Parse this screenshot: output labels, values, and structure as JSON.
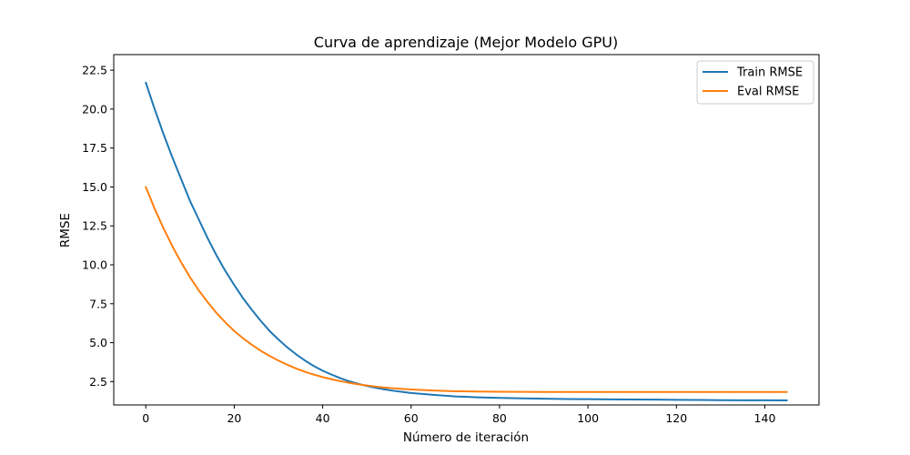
{
  "chart_data": {
    "type": "line",
    "title": "Curva de aprendizaje (Mejor Modelo GPU)",
    "xlabel": "Número de iteración",
    "ylabel": "RMSE",
    "xlim": [
      -7.25,
      152.25
    ],
    "ylim": [
      1.0,
      23.5
    ],
    "xticks": [
      0,
      20,
      40,
      60,
      80,
      100,
      120,
      140
    ],
    "xtick_labels": [
      "0",
      "20",
      "40",
      "60",
      "80",
      "100",
      "120",
      "140"
    ],
    "yticks": [
      2.5,
      5.0,
      7.5,
      10.0,
      12.5,
      15.0,
      17.5,
      20.0,
      22.5
    ],
    "ytick_labels": [
      "2.5",
      "5.0",
      "7.5",
      "10.0",
      "12.5",
      "15.0",
      "17.5",
      "20.0",
      "22.5"
    ],
    "grid": false,
    "legend_position": "top-right",
    "x": [
      0,
      2,
      4,
      6,
      8,
      10,
      12,
      14,
      16,
      18,
      20,
      22,
      24,
      26,
      28,
      30,
      32,
      34,
      36,
      38,
      40,
      42,
      44,
      46,
      48,
      50,
      52,
      54,
      56,
      58,
      60,
      65,
      70,
      75,
      80,
      85,
      90,
      95,
      100,
      105,
      110,
      115,
      120,
      125,
      130,
      135,
      140,
      145
    ],
    "series": [
      {
        "name": "Train RMSE",
        "color": "#1f77b4",
        "values": [
          21.7,
          20.0,
          18.4,
          16.9,
          15.5,
          14.1,
          12.9,
          11.7,
          10.6,
          9.6,
          8.7,
          7.85,
          7.1,
          6.4,
          5.75,
          5.2,
          4.7,
          4.25,
          3.85,
          3.5,
          3.2,
          2.95,
          2.72,
          2.52,
          2.36,
          2.22,
          2.1,
          2.0,
          1.91,
          1.84,
          1.77,
          1.65,
          1.55,
          1.49,
          1.45,
          1.42,
          1.4,
          1.38,
          1.37,
          1.36,
          1.35,
          1.34,
          1.33,
          1.32,
          1.31,
          1.3,
          1.3,
          1.29
        ]
      },
      {
        "name": "Eval RMSE",
        "color": "#ff7f0e",
        "values": [
          15.0,
          13.6,
          12.35,
          11.2,
          10.15,
          9.2,
          8.35,
          7.6,
          6.9,
          6.3,
          5.75,
          5.28,
          4.86,
          4.48,
          4.15,
          3.85,
          3.58,
          3.34,
          3.13,
          2.95,
          2.79,
          2.65,
          2.53,
          2.42,
          2.33,
          2.25,
          2.18,
          2.12,
          2.07,
          2.03,
          1.99,
          1.93,
          1.88,
          1.86,
          1.85,
          1.84,
          1.83,
          1.83,
          1.83,
          1.83,
          1.83,
          1.83,
          1.83,
          1.83,
          1.83,
          1.83,
          1.83,
          1.83
        ]
      }
    ]
  }
}
